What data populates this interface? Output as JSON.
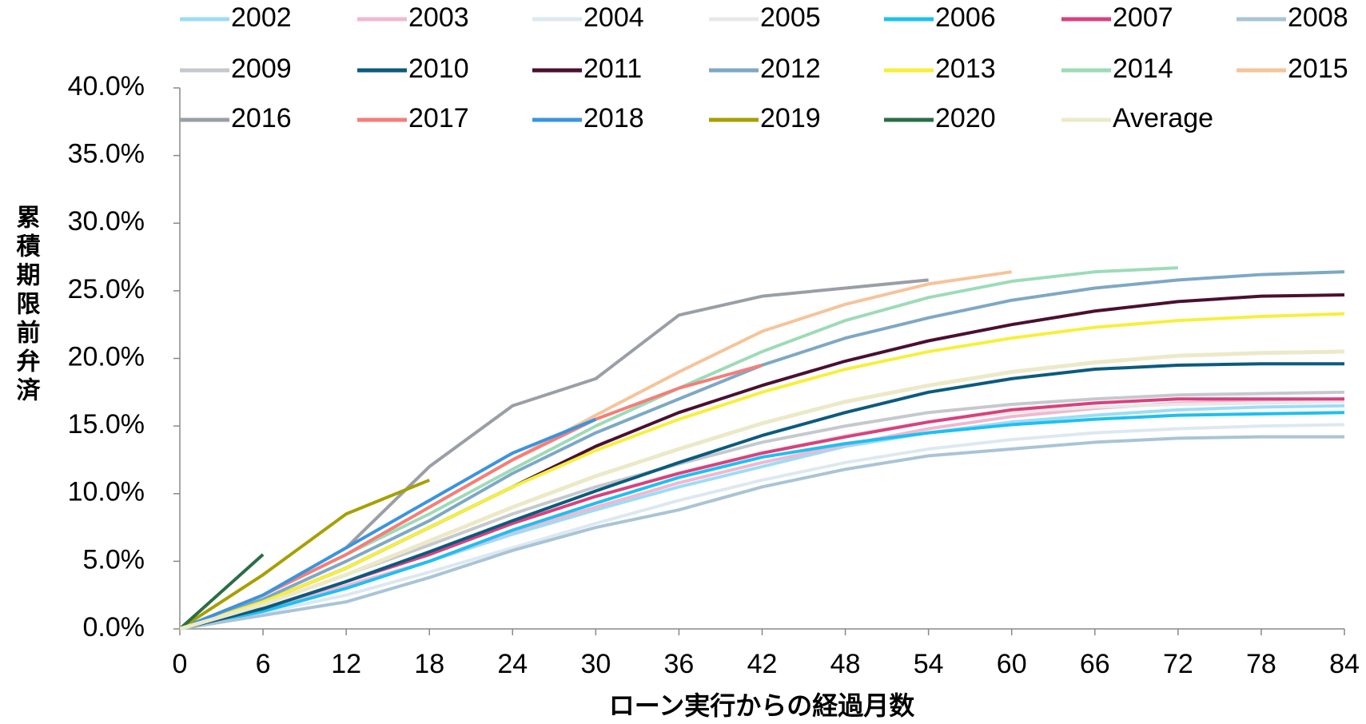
{
  "chart_data": {
    "type": "line",
    "ylabel": "累積期限前弁済",
    "xlabel": "ローン実行からの経過月数",
    "x": [
      0,
      6,
      12,
      18,
      24,
      30,
      36,
      42,
      48,
      54,
      60,
      66,
      72,
      78,
      84
    ],
    "xlim": [
      0,
      84
    ],
    "xticks": [
      0,
      6,
      12,
      18,
      24,
      30,
      36,
      42,
      48,
      54,
      60,
      66,
      72,
      78,
      84
    ],
    "ylim": [
      0,
      40
    ],
    "yticks": [
      {
        "value": 0,
        "label": "0.0%"
      },
      {
        "value": 5,
        "label": "5.0%"
      },
      {
        "value": 10,
        "label": "10.0%"
      },
      {
        "value": 15,
        "label": "15.0%"
      },
      {
        "value": 20,
        "label": "20.0%"
      },
      {
        "value": 25,
        "label": "25.0%"
      },
      {
        "value": 30,
        "label": "30.0%"
      },
      {
        "value": 35,
        "label": "35.0%"
      },
      {
        "value": 40,
        "label": "40.0%"
      }
    ],
    "series": [
      {
        "name": "2002",
        "color": "#9ddcf5",
        "values": [
          0,
          1.5,
          3,
          5,
          7,
          8.8,
          10.5,
          12,
          13.5,
          14.5,
          15.3,
          15.8,
          16.2,
          16.4,
          16.5
        ]
      },
      {
        "name": "2003",
        "color": "#f0b8d0",
        "values": [
          0,
          1.5,
          3.2,
          5,
          7.2,
          9,
          10.8,
          12.3,
          13.6,
          14.8,
          15.7,
          16.3,
          16.7,
          16.9,
          17
        ]
      },
      {
        "name": "2004",
        "color": "#dde8f0",
        "values": [
          0,
          1.2,
          2.5,
          4.2,
          6,
          7.8,
          9.5,
          11,
          12.3,
          13.3,
          14,
          14.5,
          14.8,
          15,
          15.1
        ]
      },
      {
        "name": "2005",
        "color": "#e8e8e8",
        "values": [
          0,
          1.5,
          3.5,
          5.5,
          7.8,
          9.8,
          11.5,
          13,
          14.3,
          15.3,
          16,
          16.4,
          16.6,
          16.7,
          16.8
        ]
      },
      {
        "name": "2006",
        "color": "#1ec0f0",
        "values": [
          0,
          1.3,
          3,
          5,
          7.3,
          9.3,
          11.2,
          12.7,
          13.7,
          14.5,
          15.1,
          15.5,
          15.8,
          15.9,
          16
        ]
      },
      {
        "name": "2007",
        "color": "#d9417e",
        "values": [
          0,
          1.5,
          3.5,
          5.5,
          7.8,
          9.8,
          11.5,
          13,
          14.2,
          15.3,
          16.2,
          16.7,
          17,
          17,
          17
        ]
      },
      {
        "name": "2008",
        "color": "#a9c4d6",
        "values": [
          0,
          1,
          2,
          3.8,
          5.8,
          7.5,
          8.8,
          10.5,
          11.8,
          12.8,
          13.3,
          13.8,
          14.1,
          14.2,
          14.2
        ]
      },
      {
        "name": "2009",
        "color": "#c5c8cc",
        "values": [
          0,
          1.8,
          4,
          6.2,
          8.5,
          10.5,
          12.2,
          13.8,
          15,
          16,
          16.6,
          17,
          17.3,
          17.4,
          17.5
        ]
      },
      {
        "name": "2010",
        "color": "#0b5b7e",
        "values": [
          0,
          1.5,
          3.5,
          5.7,
          8,
          10.2,
          12.3,
          14.3,
          16,
          17.5,
          18.5,
          19.2,
          19.5,
          19.6,
          19.6
        ]
      },
      {
        "name": "2011",
        "color": "#4a1030",
        "values": [
          0,
          2,
          4.5,
          7.5,
          10.5,
          13.5,
          16,
          18,
          19.8,
          21.3,
          22.5,
          23.5,
          24.2,
          24.6,
          24.7
        ]
      },
      {
        "name": "2012",
        "color": "#7ea8c4",
        "values": [
          0,
          2.2,
          5,
          8,
          11.5,
          14.5,
          17,
          19.5,
          21.5,
          23,
          24.3,
          25.2,
          25.8,
          26.2,
          26.4
        ]
      },
      {
        "name": "2013",
        "color": "#f5f03c",
        "values": [
          0,
          2,
          4.5,
          7.5,
          10.5,
          13.2,
          15.5,
          17.5,
          19.2,
          20.5,
          21.5,
          22.3,
          22.8,
          23.1,
          23.3
        ]
      },
      {
        "name": "2014",
        "color": "#9ddbb8",
        "values": [
          0,
          2.5,
          5.5,
          8.5,
          11.8,
          15,
          17.8,
          20.5,
          22.8,
          24.5,
          25.7,
          26.4,
          26.7,
          null,
          null
        ]
      },
      {
        "name": "2015",
        "color": "#f5c49a",
        "values": [
          0,
          2.5,
          5.5,
          9,
          12.5,
          15.8,
          19,
          22,
          24,
          25.5,
          26.4,
          null,
          null,
          null,
          null
        ]
      },
      {
        "name": "2016",
        "color": "#9a9ea6",
        "values": [
          0,
          2.5,
          6,
          12,
          16.5,
          18.5,
          23.2,
          24.6,
          25.2,
          25.8,
          null,
          null,
          null,
          null,
          null
        ]
      },
      {
        "name": "2017",
        "color": "#f57e78",
        "values": [
          0,
          2.5,
          5.5,
          9,
          12.5,
          15.5,
          17.8,
          19.5,
          null,
          null,
          null,
          null,
          null,
          null,
          null
        ]
      },
      {
        "name": "2018",
        "color": "#3a94e0",
        "values": [
          0,
          2.5,
          6,
          9.5,
          13,
          15.5,
          null,
          null,
          null,
          null,
          null,
          null,
          null,
          null,
          null
        ]
      },
      {
        "name": "2019",
        "color": "#a6a000",
        "values": [
          0,
          4,
          8.5,
          11,
          null,
          null,
          null,
          null,
          null,
          null,
          null,
          null,
          null,
          null,
          null
        ]
      },
      {
        "name": "2020",
        "color": "#2a6e45",
        "values": [
          0,
          5.5,
          null,
          null,
          null,
          null,
          null,
          null,
          null,
          null,
          null,
          null,
          null,
          null,
          null
        ]
      },
      {
        "name": "Average",
        "color": "#ece9c8",
        "values": [
          0,
          1.8,
          4,
          6.5,
          9,
          11.3,
          13.3,
          15.2,
          16.8,
          18,
          19,
          19.7,
          20.2,
          20.4,
          20.5
        ]
      }
    ]
  }
}
